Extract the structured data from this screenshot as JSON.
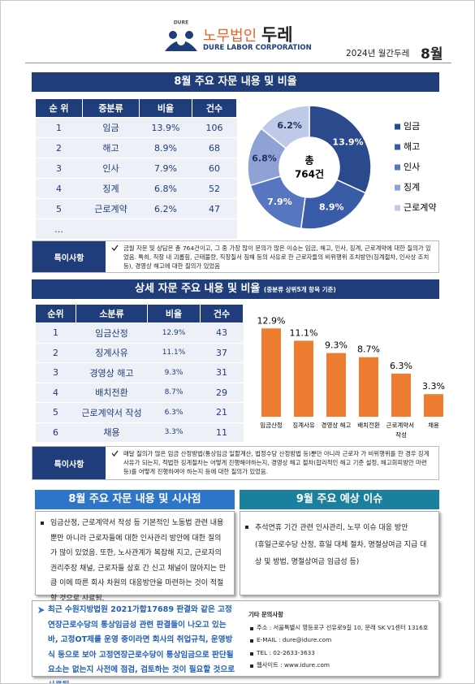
{
  "header": {
    "logo_small": "DURE",
    "brand": "노무법인",
    "brand_name": "두레",
    "brand_en": "DURE LABOR CORPORATION",
    "issue": "2024년 월간두레",
    "month": "8월"
  },
  "section1": {
    "title": "8월 주요 자문 내용 및 비율",
    "table": {
      "header": [
        "순 위",
        "중분류",
        "비율",
        "건수"
      ],
      "rows": [
        [
          "1",
          "임금",
          "13.9%",
          "106"
        ],
        [
          "2",
          "해고",
          "8.9%",
          "68"
        ],
        [
          "3",
          "인사",
          "7.9%",
          "60"
        ],
        [
          "4",
          "징계",
          "6.8%",
          "52"
        ],
        [
          "5",
          "근로계약",
          "6.2%",
          "47"
        ]
      ],
      "more": "…"
    },
    "note": {
      "label": "특이사항",
      "text": "금월 자문 및 상담은 총 764건이고, 그 중 가장 많이 문의가 많은 이슈는 임금, 해고, 인사, 징계, 근로계약에 대한 질의가 있었음. 특히, 직장 내 괴롭힘, 근태불량, 직장질서 침해 등의 사유로 한 근로자들의 비위행위 조치방안(징계절차, 인사상 조치 등), 경영상 해고에 대한 질의가 있었음"
    }
  },
  "section2": {
    "title": "상세 자문 주요 내용 및 비율",
    "subtitle": "(중분류 상위5개 항목 기준)",
    "table": {
      "header": [
        "순위",
        "소분류",
        "비율",
        "건수"
      ],
      "rows": [
        [
          "1",
          "임금산정",
          "12.9%",
          "43"
        ],
        [
          "2",
          "징계사유",
          "11.1%",
          "37"
        ],
        [
          "3",
          "경영상 해고",
          "9.3%",
          "31"
        ],
        [
          "4",
          "배치전환",
          "8.7%",
          "29"
        ],
        [
          "5",
          "근로계약서 작성",
          "6.3%",
          "21"
        ],
        [
          "6",
          "채용",
          "3.3%",
          "11"
        ]
      ]
    },
    "note": {
      "label": "특이사항",
      "text": "매달 질의가 많은 임금 산정방법(통상임금 일할계산, 법정수당 산정방법 등)뿐만 아니라 근로자 가 비위행위를 한 경우 징계사유가 되는지, 적법한 징계절차는 어떻게 진행해야하는지, 경영상 해고 절차(합리적인 해고 기준 설정, 해고회피방안 마련 등)를 어떻게 진행하여야 하는지 등에 대한 질의가 있었음."
    }
  },
  "section3": {
    "left": {
      "title": "8월 주요 자문 내용 및 시사점",
      "text": "임금산정, 근로계약서 작성 등 기본적인 노동법 관련 내용 뿐만 아니라 근로자들에 대한 인사관리 방안에 대한 질의가 많이 있었음. 또한, 노사관계가 복잡해 지고, 근로자의 권리주장 채널, 근로자들 상호 간 신고 채널이 많아지는 만큼 이에 따른 회사 차원의 대응방안을 마련하는 것이 적절할 것으로 사료됨."
    },
    "right": {
      "title": "9월 주요 예상 이슈",
      "items": [
        "추석연휴 기간 관련 인사관리, 노무 이슈 대응 방안",
        "(휴일근로수당 산정, 휴일 대체 절차, 명절상여금 지급 대상 및 방법, 명절상여금 임금성 등)"
      ]
    }
  },
  "footer": {
    "text": "최근 수원지방법원 2021가합17689 판결와 같은 고정연장근로수당의 통상임금성 관련 판결들이 나오고 있는바, 고정OT제를 운영 중이라면 회사의 취업규칙, 운영방식 등으로 보아 고정연장근로수당이 통상임금으로 판단될 요소는 없는지 사전에 점검, 검토하는 것이 필요할 것으로 사료됨.",
    "contact": {
      "title": "기타 문의사항",
      "items": [
        "주소 : 서울특별시 영등포구 선유로9길 10, 문래 SK V1센터 1316호",
        "E-MAIL : dure@idure.com",
        "TEL : 02-2633-3633",
        "웹사이트 : www.idure.com"
      ]
    }
  },
  "chart_data": [
    {
      "type": "pie",
      "categories": [
        "임금",
        "해고",
        "인사",
        "징계",
        "근로계약"
      ],
      "values": [
        13.9,
        8.9,
        7.9,
        6.8,
        6.2
      ],
      "value_labels": [
        "13.9%",
        "8.9%",
        "7.9%",
        "6.8%",
        "6.2%"
      ],
      "colors": [
        "#2b4a8e",
        "#3a5ba8",
        "#5776c2",
        "#8ea2d6",
        "#bfcae9"
      ],
      "center_label": [
        "총",
        "764건"
      ],
      "legend": "right"
    },
    {
      "type": "bar",
      "categories": [
        "임금산정",
        "징계사유",
        "경영상 해고",
        "배치전환",
        "근로계약서 작성",
        "채용"
      ],
      "values": [
        12.9,
        11.1,
        9.3,
        8.7,
        6.3,
        3.3
      ],
      "value_labels": [
        "12.9%",
        "11.1%",
        "9.3%",
        "8.7%",
        "6.3%",
        "3.3%"
      ],
      "color": "#ed7d31",
      "ylim": [
        0,
        14
      ]
    }
  ]
}
